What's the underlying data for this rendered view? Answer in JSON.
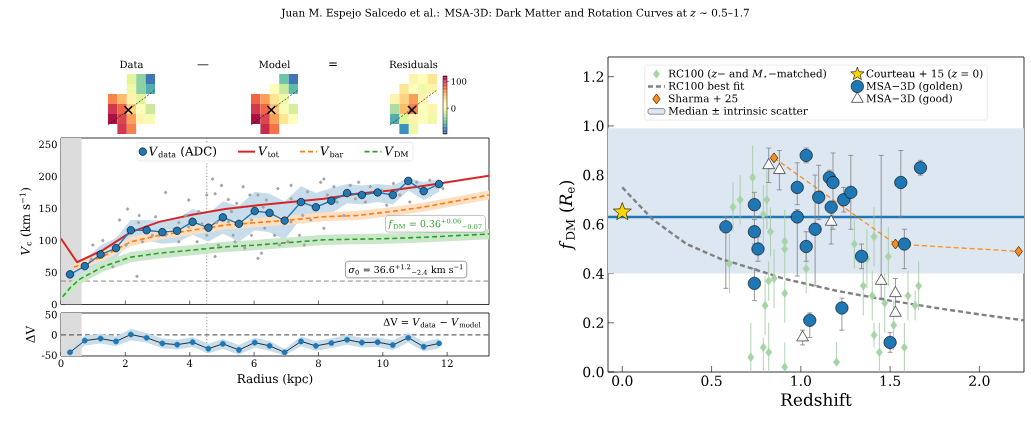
{
  "chart_data": [
    {
      "type": "other",
      "title": "Juan M. Espejo Salcedo et al.: MSA-3D: Dark Matter and Rotation Curves at *z* ∼ 0.5–1.7",
      "annotations": [
        "Data",
        "—",
        "Model",
        "=",
        "Residuals",
        "100",
        "0"
      ]
    },
    {
      "type": "line",
      "ylabel": "*V*$_{c}$ (km s$^{−1}$)",
      "xlim": [
        0,
        13.3
      ],
      "xticks": [
        0,
        2,
        4,
        6,
        8,
        10,
        12
      ],
      "ylim": [
        0,
        260
      ],
      "yticks": [
        0,
        50,
        100,
        150,
        200,
        250
      ],
      "tick_labels": "y",
      "legend": "top",
      "series": [
        {
          "type": "scatter",
          "color": "#a3a3a3",
          "marker": "circle",
          "x": [
            2.07,
            2.43,
            2.41,
            1.82,
            1.3,
            0.99,
            0.94,
            1.61,
            2.36,
            2.94,
            3.05,
            3.25,
            3.51,
            3.87,
            3.97,
            4.07,
            4.28,
            4.38,
            4.53,
            4.71,
            4.79,
            4.84,
            4.99,
            5.2,
            5.3,
            5.35,
            5.46,
            5.66,
            5.71,
            5.87,
            5.92,
            6.12,
            6.12,
            6.28,
            6.38,
            6.64,
            6.74,
            6.79,
            7.15,
            7.15,
            7.35,
            7.41,
            7.51,
            7.66,
            7.76,
            8.07,
            8.17,
            8.17,
            8.28,
            8.48,
            8.58,
            8.79,
            8.99,
            9.15,
            9.25,
            9.46,
            9.61,
            9.97,
            10.12,
            10.33,
            10.53,
            10.84,
            11.05,
            11.25,
            11.46,
            11.66,
            11.87,
            4.53,
            4.89,
            5.41,
            5.92,
            6.33,
            4.79,
            6.23,
            7.05,
            7.56,
            3.25,
            3.66,
            2.84,
            2.53,
            2.02,
            4.23,
            3.97,
            3.66,
            5.2,
            7.15
          ],
          "values": [
            149,
            139,
            128,
            132,
            100,
            93,
            71,
            59,
            44,
            137,
            108,
            175,
            118,
            139,
            121,
            134,
            145,
            126,
            108,
            196,
            173,
            128,
            186,
            164,
            145,
            108,
            158,
            184,
            88,
            171,
            132,
            171,
            72,
            152,
            163,
            108,
            181,
            93,
            165,
            129,
            158,
            108,
            139,
            176,
            132,
            191,
            196,
            119,
            171,
            184,
            160,
            139,
            186,
            165,
            191,
            160,
            184,
            178,
            155,
            189,
            171,
            160,
            191,
            173,
            194,
            184,
            181,
            171,
            93,
            98,
            108,
            119,
            75,
            80,
            98,
            93,
            108,
            98,
            108,
            98,
            93,
            98,
            163,
            128,
            129,
            186
          ]
        },
        {
          "name": "*V*$_{data}$ (ADC)",
          "color": "#1f77b4",
          "marker": "circle",
          "x": [
            0.28,
            0.74,
            1.23,
            1.71,
            2.17,
            2.66,
            3.15,
            3.61,
            4.09,
            4.58,
            5.03,
            5.53,
            6.02,
            6.48,
            6.95,
            7.46,
            7.92,
            8.4,
            8.89,
            9.35,
            9.84,
            10.31,
            10.79,
            11.27,
            11.75
          ],
          "values": [
            47,
            60,
            78,
            88,
            116,
            116,
            113,
            115,
            129,
            120,
            136,
            126,
            146,
            143,
            131,
            160,
            152,
            162,
            174,
            171,
            175,
            171,
            193,
            177,
            188
          ],
          "lower": [
            39,
            50,
            64,
            72,
            100,
            100,
            95,
            97,
            109,
            98,
            111,
            98,
            116,
            113,
            101,
            135,
            130,
            142,
            158,
            156,
            160,
            156,
            178,
            163,
            176
          ],
          "upper": [
            55,
            70,
            92,
            104,
            132,
            132,
            131,
            133,
            149,
            142,
            161,
            154,
            176,
            173,
            161,
            185,
            174,
            182,
            188,
            186,
            188,
            186,
            198,
            191,
            196
          ]
        },
        {
          "name": "*V*$_{tot}$",
          "color": "#d62728",
          "x": [
            0,
            0.5,
            1.3,
            2.17,
            3.05,
            4.07,
            5.1,
            6.12,
            7.15,
            8.17,
            9.2,
            10.23,
            11.25,
            13.3
          ],
          "values": [
            103,
            66,
            85,
            113,
            129,
            140,
            149,
            155,
            160,
            165,
            173,
            178,
            185,
            201
          ]
        },
        {
          "name": "*V*$_{bar}$",
          "color": "#ff7f0e",
          "line_style": "dashed",
          "x": [
            0.4,
            1.3,
            2.17,
            3.05,
            4.07,
            5.1,
            6.12,
            7.15,
            8.17,
            9.2,
            10.23,
            11.25,
            13.3
          ],
          "values": [
            58,
            75,
            98,
            108,
            116,
            124,
            128,
            132,
            137,
            139,
            145,
            152,
            171
          ],
          "lower": [
            51,
            68,
            91,
            101,
            109,
            117,
            121,
            125,
            130,
            132,
            138,
            145,
            164
          ],
          "upper": [
            65,
            82,
            105,
            115,
            123,
            131,
            135,
            139,
            144,
            146,
            152,
            159,
            178
          ]
        },
        {
          "name": "*V*$_{DM}$",
          "color": "#2ca02c",
          "line_style": "dashed",
          "x": [
            0.05,
            0.3,
            0.6,
            1.3,
            2.17,
            3.05,
            4.07,
            5.1,
            6.12,
            7.15,
            8.17,
            9.2,
            10.23,
            11.25,
            13.3
          ],
          "values": [
            12,
            27,
            40,
            59,
            74,
            80,
            85,
            90,
            93,
            97,
            101,
            102,
            103,
            105,
            110
          ],
          "lower": [
            4,
            19,
            32,
            51,
            66,
            72,
            77,
            82,
            85,
            89,
            93,
            94,
            95,
            97,
            102
          ],
          "upper": [
            20,
            35,
            48,
            67,
            82,
            88,
            93,
            98,
            101,
            105,
            109,
            110,
            111,
            113,
            118
          ]
        }
      ],
      "ref_lines": [
        {
          "axis": "y",
          "value": 36.6,
          "label": "*σ*$_{0}$ = 36.6$^{+1.2}$$_{−2.4}$ km s$^{−1}$",
          "color": "#7f7f7f",
          "line_style": "dashed"
        },
        {
          "axis": "x",
          "value": 4.53,
          "color": "#7f7f7f",
          "line_style": "dotted"
        }
      ],
      "bands": [
        {
          "axis": "x",
          "from": 0,
          "to": 0.64,
          "color": "#dcdcdc"
        }
      ],
      "annotations": [
        "*f*$_{DM}$ = 0.36$^{+0.06}$$_{−0.07}$"
      ]
    },
    {
      "type": "line",
      "xlabel": "Radius (kpc)",
      "ylabel": "ΔV",
      "xlim": [
        0,
        13.3
      ],
      "xticks": [
        0,
        2,
        4,
        6,
        8,
        10,
        12
      ],
      "ylim": [
        -52,
        54
      ],
      "yticks": [
        -50,
        0,
        50
      ],
      "series": [
        {
          "color": "#000000",
          "colors": [
            "#1f77b4",
            "#1f77b4",
            "#1f77b4",
            "#1f77b4",
            "#1f77b4",
            "#1f77b4",
            "#1f77b4",
            "#1f77b4",
            "#1f77b4",
            "#1f77b4",
            "#1f77b4",
            "#1f77b4",
            "#1f77b4",
            "#1f77b4",
            "#1f77b4",
            "#1f77b4",
            "#1f77b4",
            "#1f77b4",
            "#1f77b4",
            "#1f77b4",
            "#1f77b4",
            "#1f77b4",
            "#1f77b4",
            "#1f77b4",
            "#1f77b4"
          ],
          "marker": "circle",
          "x": [
            0.28,
            0.74,
            1.23,
            1.71,
            2.17,
            2.66,
            3.15,
            3.61,
            4.09,
            4.58,
            5.03,
            5.53,
            6.02,
            6.48,
            6.95,
            7.46,
            7.92,
            8.4,
            8.89,
            9.35,
            9.84,
            10.31,
            10.79,
            11.27,
            11.75
          ],
          "values": [
            -43,
            -14,
            -9,
            -16,
            1,
            -7,
            -21,
            -24,
            -18,
            -34,
            -22,
            -37,
            -19,
            -27,
            -43,
            -16,
            -27,
            -20,
            -12,
            -19,
            -18,
            -25,
            -7,
            -29,
            -21
          ],
          "lower": [
            -51,
            -26,
            -21,
            -28,
            -13,
            -19,
            -33,
            -36,
            -30,
            -46,
            -34,
            -49,
            -31,
            -39,
            -51,
            -28,
            -39,
            -32,
            -24,
            -31,
            -30,
            -37,
            -19,
            -41,
            -33
          ],
          "upper": [
            -35,
            -2,
            3,
            -4,
            15,
            5,
            -9,
            -12,
            -6,
            -22,
            -10,
            -25,
            -7,
            -15,
            -35,
            -4,
            -15,
            -8,
            0,
            -7,
            -6,
            -13,
            5,
            -17,
            -9
          ]
        }
      ],
      "ref_lines": [
        {
          "axis": "y",
          "value": 0,
          "color": "#404040",
          "line_style": "dashed"
        },
        {
          "axis": "x",
          "value": 4.53,
          "color": "#7f7f7f",
          "line_style": "dotted"
        }
      ],
      "bands": [
        {
          "axis": "x",
          "from": 0,
          "to": 0.64,
          "color": "#dcdcdc"
        }
      ],
      "annotations": [
        "ΔV = *V*$_{data}$ − *V*$_{model}$"
      ]
    },
    {
      "type": "scatter",
      "xlabel": "Redshift",
      "ylabel": "*f*$_{DM}$ (*R*$_{e}$)",
      "xlim": [
        -0.08,
        2.25
      ],
      "xticks": [
        {
          "value": 0,
          "label": "0.0"
        },
        {
          "value": 0.5,
          "label": "0.5"
        },
        {
          "value": 1,
          "label": "1.0"
        },
        {
          "value": 1.5,
          "label": "1.5"
        },
        {
          "value": 2,
          "label": "2.0"
        }
      ],
      "ylim": [
        0,
        1.28
      ],
      "yticks": [
        {
          "value": 0,
          "label": "0.0"
        },
        {
          "value": 0.2,
          "label": "0.2"
        },
        {
          "value": 0.4,
          "label": "0.4"
        },
        {
          "value": 0.6,
          "label": "0.6"
        },
        {
          "value": 0.8,
          "label": "0.8"
        },
        {
          "value": 1,
          "label": "1.0"
        },
        {
          "value": 1.2,
          "label": "1.2"
        }
      ],
      "legend": "top",
      "series": [
        {
          "name": "RC100 (*z*− and *M*$_{⋆}$−matched)",
          "type": "scatter",
          "color": "#a6d4a6",
          "marker": "diamond",
          "x": [
            0.6,
            0.62,
            0.66,
            0.73,
            0.72,
            0.81,
            0.79,
            0.83,
            0.91,
            0.91,
            1.03,
            0.8,
            0.79,
            0.82,
            0.91,
            0.85,
            0.91,
            0.82,
            1.2,
            1.3,
            1.41,
            1.49,
            1.37,
            1.35,
            1.4,
            1.41,
            1.44,
            1.47,
            1.52,
            1.58,
            1.6,
            1.64,
            1.66
          ],
          "values": [
            0.44,
            0.67,
            0.7,
            0.79,
            0.06,
            0.7,
            0.64,
            0.57,
            0.53,
            0.5,
            0.42,
            0.27,
            0.1,
            0.08,
            0.02,
            0.38,
            0.32,
            0.37,
            0.04,
            0.52,
            0.55,
            0.47,
            0.46,
            0.35,
            0.31,
            0.15,
            0.08,
            0.28,
            0.19,
            0.1,
            0.31,
            0.27,
            0.35
          ],
          "errors": [
            0.12,
            0.1,
            0.1,
            0.13,
            [
              0,
              0.2
            ],
            0.12,
            0.12,
            0.1,
            [
              0.52,
              0.66
            ],
            [
              0.38,
              0.51
            ],
            0.1,
            0.12,
            [
              0,
              0.14
            ],
            [
              0,
              0.2
            ],
            [
              0.02,
              0.12
            ],
            0.12,
            [
              0.2,
              0.37
            ],
            0.08,
            [
              0.04,
              0.12
            ],
            0.1,
            0.12,
            0.12,
            0.12,
            0.12,
            0.1,
            0.05,
            [
              0,
              0.2
            ],
            0.12,
            0.1,
            0.1,
            0.1,
            0.06,
            0.1
          ]
        },
        {
          "name": "RC100 best fit",
          "type": "line",
          "color": "#808080",
          "line_style": "dashed",
          "x": [
            0,
            0.17,
            0.36,
            0.55,
            0.73,
            0.9,
            1.2,
            1.5,
            1.76,
            2.04,
            2.25
          ],
          "values": [
            0.75,
            0.62,
            0.52,
            0.46,
            0.42,
            0.38,
            0.33,
            0.29,
            0.26,
            0.23,
            0.21
          ]
        },
        {
          "name": "Sharma + 25",
          "type": "line",
          "color": "#ff8c1a",
          "line_style": "dashed",
          "marker": "diamond",
          "x": [
            0.85,
            1.53,
            2.22
          ],
          "values": [
            0.87,
            0.52,
            0.49
          ]
        },
        {
          "name": "Courteau + 15 (*z* = 0)",
          "type": "scatter",
          "color": "#ffd700",
          "marker": "star",
          "x": [
            0
          ],
          "values": [
            0.65
          ]
        },
        {
          "name": "MSA−3D (golden)",
          "type": "scatter",
          "color": "#1f77b4",
          "marker": "circle",
          "x": [
            0.58,
            0.74,
            0.74,
            0.76,
            0.74,
            1.03,
            0.98,
            0.98,
            1.03,
            1.1,
            1.08,
            1.16,
            1.18,
            1.17,
            1.24,
            1.28,
            1.34,
            1.56,
            1.58,
            1.67,
            1.05,
            1.23,
            1.5
          ],
          "values": [
            0.59,
            0.68,
            0.57,
            0.5,
            0.36,
            0.88,
            0.75,
            0.63,
            0.51,
            0.71,
            0.58,
            0.79,
            0.77,
            0.67,
            0.7,
            0.73,
            0.47,
            0.77,
            0.52,
            0.83,
            0.21,
            0.26,
            0.12
          ],
          "errors": [
            [
              0.34,
              0.63
            ],
            0.05,
            0.05,
            0.05,
            [
              0.29,
              0.42
            ],
            0.03,
            [
              0.68,
              0.85
            ],
            [
              0.39,
              0.66
            ],
            [
              0.45,
              0.57
            ],
            [
              0.62,
              0.84
            ],
            [
              0.35,
              0.8
            ],
            0.03,
            [
              0.58,
              0.89
            ],
            null,
            0.05,
            [
              0.58,
              0.88
            ],
            0.05,
            [
              0.63,
              0.9
            ],
            [
              0.42,
              0.58
            ],
            0.03,
            [
              0.14,
              0.24
            ],
            [
              0.17,
              0.3
            ],
            0.04
          ]
        },
        {
          "name": "MSA−3D (good)",
          "type": "scatter",
          "color": "#ffffff",
          "marker": "triangle",
          "x": [
            0.82,
            0.88,
            1.17,
            1.45,
            1.53,
            1.53,
            1.01
          ],
          "values": [
            0.84,
            0.82,
            0.61,
            0.37,
            0.32,
            0.24,
            0.14
          ],
          "errors": [
            0.07,
            0.08,
            [
              0.52,
              0.69
            ],
            [
              0.3,
              0.88
            ],
            [
              0.25,
              0.38
            ],
            null,
            0.03
          ]
        }
      ],
      "ref_lines": [
        {
          "axis": "y",
          "value": 0.63,
          "color": "#1f77b4"
        }
      ],
      "bands": [
        {
          "axis": "y",
          "from": 0.4,
          "to": 0.99,
          "color": "#dce7f2",
          "label": "Median ± intrinsic scatter"
        }
      ]
    }
  ]
}
